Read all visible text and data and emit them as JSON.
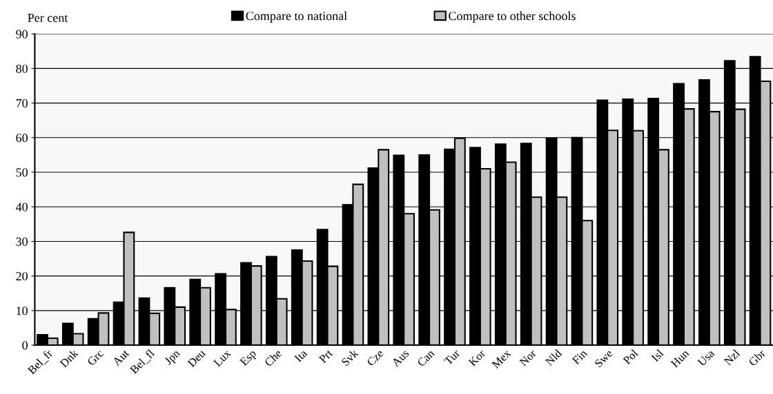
{
  "chart_data": {
    "type": "bar",
    "ylabel": "Per cent",
    "categories": [
      "Bel_fr",
      "Dnk",
      "Grc",
      "Aut",
      "Bel_fl",
      "Jpn",
      "Deu",
      "Lux",
      "Esp",
      "Che",
      "Ita",
      "Prt",
      "Svk",
      "Cze",
      "Aus",
      "Can",
      "Tur",
      "Kor",
      "Mex",
      "Nor",
      "Nld",
      "Fin",
      "Swe",
      "Pol",
      "Isl",
      "Hun",
      "Usa",
      "Nzl",
      "Gbr"
    ],
    "series": [
      {
        "name": "Compare to national",
        "color": "#000000",
        "values": [
          3,
          6.3,
          7.6,
          12.4,
          13.6,
          16.6,
          19,
          20.6,
          23.8,
          25.6,
          27.5,
          33.4,
          40.6,
          51.2,
          54.9,
          55,
          56.6,
          57.1,
          58.1,
          58.3,
          59.8,
          60,
          70.8,
          71.1,
          71.3,
          75.6,
          76.7,
          82.2,
          83.4
        ]
      },
      {
        "name": "Compare to other schools",
        "color": "#c0c0c0",
        "values": [
          2,
          3.3,
          9.3,
          32.6,
          9.2,
          11,
          16.6,
          10.3,
          22.9,
          13.4,
          24.3,
          22.8,
          46.5,
          56.5,
          38,
          39.1,
          59.8,
          51,
          52.9,
          42.8,
          42.8,
          36,
          62.1,
          62,
          56.5,
          68.3,
          67.5,
          68.2,
          76.3
        ]
      }
    ],
    "ylim": [
      0,
      90
    ],
    "yticks": [
      0,
      10,
      20,
      30,
      40,
      50,
      60,
      70,
      80,
      90
    ],
    "grid": "y",
    "legend": "top"
  }
}
